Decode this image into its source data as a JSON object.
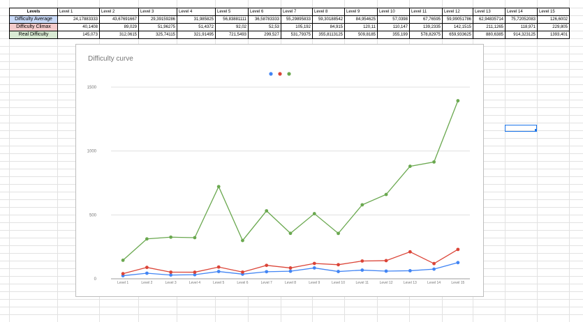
{
  "table": {
    "header": [
      "Levels",
      "Level 1",
      "Level 2",
      "Level 3",
      "Level 4",
      "Level 5",
      "Level 6",
      "Level 7",
      "Level 8",
      "Level 9",
      "Level 10",
      "Level 11",
      "Level 12",
      "Level 13",
      "Level 14",
      "Level 15"
    ],
    "rows": [
      {
        "label": "Difficulty Average",
        "color": "#c9daf8",
        "values": [
          "24,17883333",
          "43,67691667",
          "29,39159286",
          "31,985825",
          "56,83881111",
          "36,58783333",
          "55,29895833",
          "59,30188542",
          "84,954625",
          "57,0398",
          "67,76595",
          "59,99051786",
          "62,94835714",
          "75,72052083",
          "126,6002"
        ]
      },
      {
        "label": "Difficulty Climax",
        "color": "#f4cccc",
        "values": [
          "40,1408",
          "89,029",
          "51,96275",
          "51,4372",
          "92,02",
          "52,53",
          "105,192",
          "84,915",
          "120,11",
          "110,147",
          "139,2335",
          "142,1515",
          "211,1265",
          "118,971",
          "229,805"
        ]
      },
      {
        "label": "Real Difficulty",
        "color": "#d9ead3",
        "values": [
          "145,073",
          "312,0615",
          "325,74115",
          "321,91495",
          "721,5493",
          "299,527",
          "531,79375",
          "355,8113125",
          "509,8185",
          "355,199",
          "578,82975",
          "659,933625",
          "880,6385",
          "914,323125",
          "1393,401"
        ]
      }
    ]
  },
  "chart_data": {
    "type": "line",
    "title": "Difficulty curve",
    "categories": [
      "Level 1",
      "Level 2",
      "Level 3",
      "Level 4",
      "Level 5",
      "Level 6",
      "Level 7",
      "Level 8",
      "Level 9",
      "Level 10",
      "Level 11",
      "Level 12",
      "Level 13",
      "Level 14",
      "Level 15"
    ],
    "series": [
      {
        "color": "#4285f4",
        "values": [
          24.18,
          43.68,
          29.39,
          31.99,
          56.84,
          36.59,
          55.3,
          59.3,
          84.95,
          57.04,
          67.77,
          59.99,
          62.95,
          75.72,
          126.6
        ]
      },
      {
        "color": "#db4437",
        "values": [
          40.14,
          89.03,
          51.96,
          51.44,
          92.02,
          52.53,
          105.19,
          84.92,
          120.11,
          110.15,
          139.23,
          142.15,
          211.13,
          118.97,
          229.81
        ]
      },
      {
        "color": "#6aa84f",
        "values": [
          145.07,
          312.06,
          325.74,
          321.91,
          721.55,
          299.53,
          531.79,
          355.81,
          509.82,
          355.2,
          578.83,
          659.93,
          880.64,
          914.32,
          1393.4
        ]
      }
    ],
    "yticks": [
      "0",
      "500",
      "1000",
      "1500"
    ],
    "ylim": [
      0,
      1500
    ],
    "grid": true,
    "legend": "top-center",
    "colors": {
      "axis": "#9e9e9e",
      "grid": "#e0e0e0",
      "tick_text": "#757575"
    }
  }
}
